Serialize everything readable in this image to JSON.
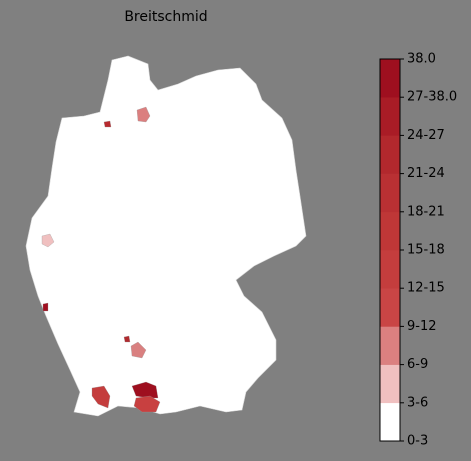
{
  "title": "Breitschmid",
  "colorbar": {
    "labels": [
      "0-3",
      "3-6",
      "6-9",
      "9-12",
      "12-15",
      "15-18",
      "18-21",
      "21-24",
      "24-27",
      "27-38.0",
      "38.0"
    ],
    "colors": [
      "#ffffff",
      "#f0c0c0",
      "#db8080",
      "#c94545",
      "#c43d3d",
      "#bf3737",
      "#b93033",
      "#b2282d",
      "#a91c26",
      "#9e0f1f"
    ]
  },
  "regions": [
    {
      "color": "#db7f7f"
    },
    {
      "color": "#b82b2f"
    },
    {
      "color": "#f0c0c0"
    },
    {
      "color": "#a01020"
    },
    {
      "color": "#b02a2e"
    },
    {
      "color": "#d98080"
    },
    {
      "color": "#c43d3d"
    },
    {
      "color": "#9e0f1f"
    },
    {
      "color": "#c84040"
    }
  ]
}
